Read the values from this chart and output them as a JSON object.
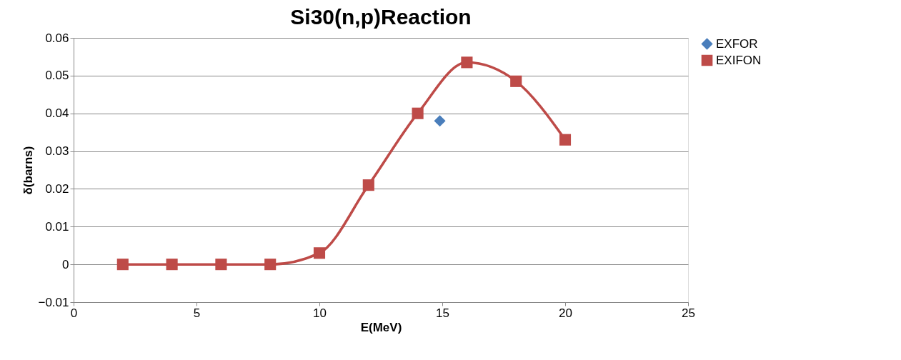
{
  "chart_data": {
    "type": "line",
    "title": "Si30(n,p)Reaction",
    "xlabel": "E(MeV)",
    "ylabel": "δ(barns)",
    "xlim": [
      0,
      25
    ],
    "xticks": [
      0,
      5,
      10,
      15,
      20,
      25
    ],
    "ylim": [
      -0.01,
      0.06
    ],
    "yticks": [
      -0.01,
      0,
      0.01,
      0.02,
      0.03,
      0.04,
      0.05,
      0.06
    ],
    "grid": "y",
    "legend": "right",
    "series": [
      {
        "name": "EXFOR",
        "type": "scatter",
        "marker": "diamond",
        "color": "#4a7ebb",
        "x": [
          14.9
        ],
        "values": [
          0.038
        ]
      },
      {
        "name": "EXIFON",
        "marker": "square",
        "line_style": "solid",
        "color": "#be4b48",
        "x": [
          2,
          4,
          6,
          8,
          10,
          12,
          14,
          16,
          18,
          20
        ],
        "values": [
          0,
          0,
          0,
          0,
          0.003,
          0.021,
          0.04,
          0.0535,
          0.0485,
          0.033
        ]
      }
    ]
  }
}
